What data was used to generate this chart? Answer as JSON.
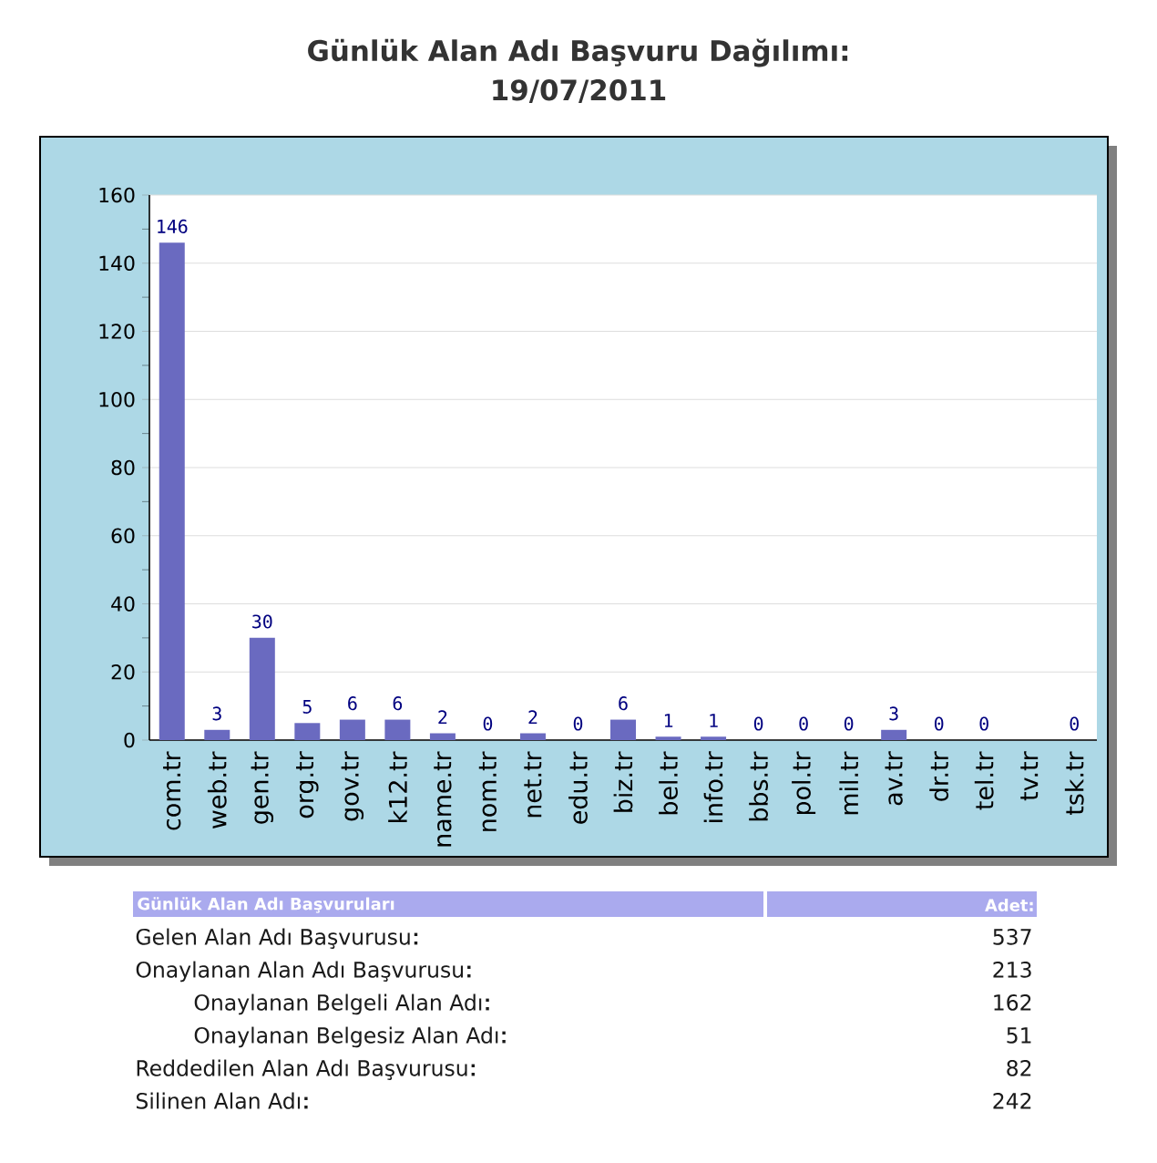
{
  "chart_data": [
    {
      "type": "bar",
      "title": "Günlük Alan Adı Başvuru Dağılımı:",
      "subtitle": "19/07/2011",
      "categories": [
        "com.tr",
        "web.tr",
        "gen.tr",
        "org.tr",
        "gov.tr",
        "k12.tr",
        "name.tr",
        "nom.tr",
        "net.tr",
        "edu.tr",
        "biz.tr",
        "bel.tr",
        "info.tr",
        "bbs.tr",
        "pol.tr",
        "mil.tr",
        "av.tr",
        "dr.tr",
        "tel.tr",
        "tv.tr",
        "tsk.tr"
      ],
      "values": [
        146,
        3,
        30,
        5,
        6,
        6,
        2,
        0,
        2,
        0,
        6,
        1,
        1,
        0,
        0,
        0,
        3,
        0,
        0,
        null,
        0
      ],
      "color": "#6a6ac0",
      "ylim": [
        0,
        160
      ],
      "yticks": [
        0,
        20,
        40,
        60,
        80,
        100,
        120,
        140,
        160
      ],
      "grid": "y",
      "data_labels": true
    },
    {
      "type": "other",
      "title": "Günlük Alan Adı Başvuruları",
      "ylabel": "Adet:",
      "categories": [
        "Gelen Alan Adı Başvurusu",
        "Onaylanan Alan Adı Başvurusu",
        "Onaylanan Belgeli Alan Adı",
        "Onaylanan Belgesiz Alan Adı",
        "Reddedilen Alan Adı Başvurusu",
        "Silinen Alan Adı"
      ],
      "values": [
        537,
        213,
        162,
        51,
        82,
        242
      ],
      "data_labels": true
    }
  ]
}
